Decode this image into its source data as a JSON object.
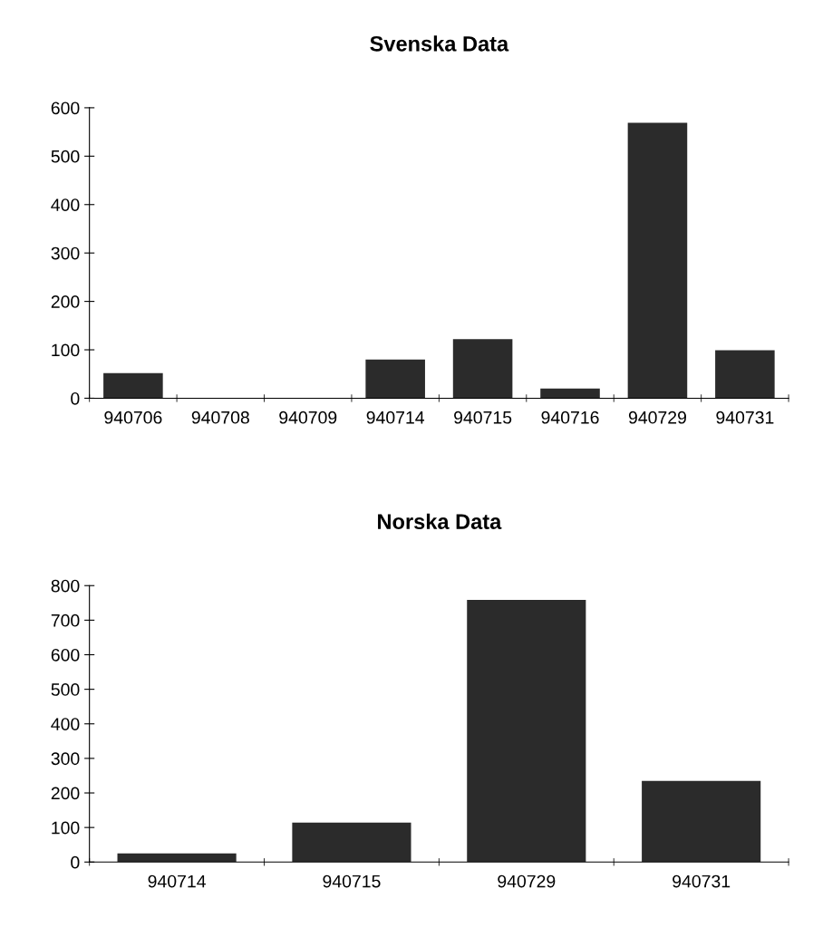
{
  "chart_data": [
    {
      "type": "bar",
      "title": "Svenska Data",
      "categories": [
        "940706",
        "940708",
        "940709",
        "940714",
        "940715",
        "940716",
        "940729",
        "940731"
      ],
      "values": [
        52,
        null,
        null,
        80,
        122,
        20,
        569,
        99
      ],
      "color": "#2b2b2b",
      "ylim": [
        0,
        600
      ],
      "yticks": [
        0,
        100,
        200,
        300,
        400,
        500,
        600
      ],
      "grid": false,
      "legend": false
    },
    {
      "type": "bar",
      "title": "Norska Data",
      "categories": [
        "940714",
        "940715",
        "940729",
        "940731"
      ],
      "values": [
        25,
        114,
        759,
        235
      ],
      "color": "#2b2b2b",
      "ylim": [
        0,
        800
      ],
      "yticks": [
        0,
        100,
        200,
        300,
        400,
        500,
        600,
        700,
        800
      ],
      "grid": false,
      "legend": false
    }
  ]
}
